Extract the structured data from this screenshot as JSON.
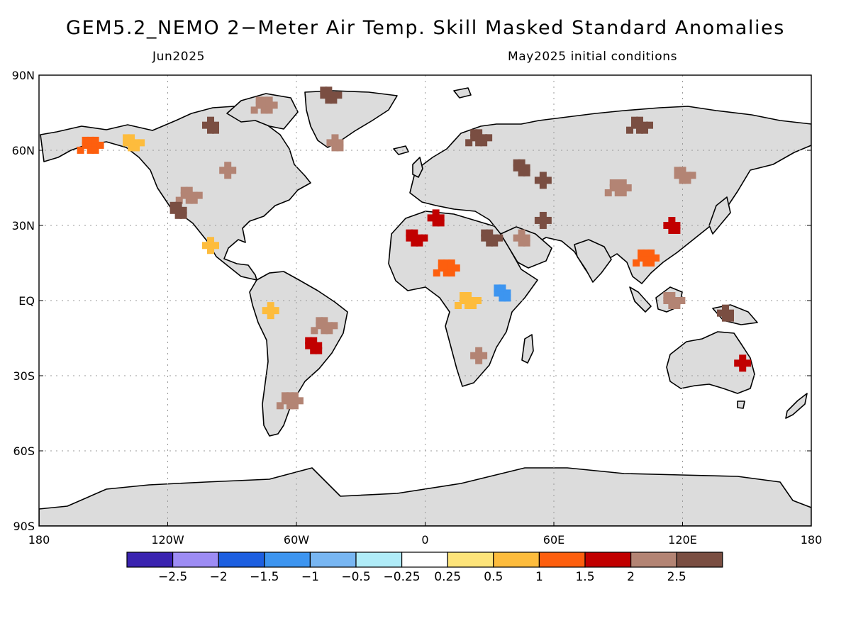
{
  "header": {
    "title": "GEM5.2_NEMO 2−Meter Air Temp. Skill Masked Standard Anomalies",
    "valid_month": "Jun2025",
    "init_note": "May2025 initial conditions"
  },
  "map": {
    "lat_ticks": [
      {
        "label": "90N",
        "lat": 90
      },
      {
        "label": "60N",
        "lat": 60
      },
      {
        "label": "30N",
        "lat": 30
      },
      {
        "label": "EQ",
        "lat": 0
      },
      {
        "label": "30S",
        "lat": -30
      },
      {
        "label": "60S",
        "lat": -60
      },
      {
        "label": "90S",
        "lat": -90
      }
    ],
    "lon_ticks": [
      {
        "label": "180",
        "lon": -180
      },
      {
        "label": "120W",
        "lon": -120
      },
      {
        "label": "60W",
        "lon": -60
      },
      {
        "label": "0",
        "lon": 0
      },
      {
        "label": "60E",
        "lon": 60
      },
      {
        "label": "120E",
        "lon": 120
      },
      {
        "label": "180",
        "lon": 180
      }
    ],
    "grid": true,
    "land_color": "#dcdcdc",
    "ocean_color": "#ffffff",
    "coast_color": "#000000"
  },
  "legend": {
    "bins": [
      {
        "color": "#3a23b0"
      },
      {
        "color": "#9d8cf4"
      },
      {
        "color": "#1d5fe0"
      },
      {
        "color": "#3d95f0"
      },
      {
        "color": "#78b6f2"
      },
      {
        "color": "#b0ecf8"
      },
      {
        "color": "#ffffff"
      },
      {
        "color": "#fde47a"
      },
      {
        "color": "#fdbc3d"
      },
      {
        "color": "#fd5f0e"
      },
      {
        "color": "#c10000"
      },
      {
        "color": "#b38474"
      },
      {
        "color": "#7a4e42"
      }
    ],
    "labels": [
      "−2.5",
      "−2",
      "−1.5",
      "−1",
      "−0.5",
      "−0.25",
      "0.25",
      "0.5",
      "1",
      "1.5",
      "2",
      "2.5"
    ]
  },
  "anomaly_regions": [
    {
      "name": "alaska-west",
      "lon": -156,
      "lat": 62,
      "level": 1
    },
    {
      "name": "yukon",
      "lon": -137,
      "lat": 63,
      "level": 0.5
    },
    {
      "name": "canadian-arctic",
      "lon": -100,
      "lat": 70,
      "level": 2.5
    },
    {
      "name": "baffin",
      "lon": -75,
      "lat": 78,
      "level": 2
    },
    {
      "name": "greenland-north",
      "lon": -45,
      "lat": 82,
      "level": 2.5
    },
    {
      "name": "greenland-south",
      "lon": -42,
      "lat": 63,
      "level": 2
    },
    {
      "name": "hudson-west",
      "lon": -92,
      "lat": 52,
      "level": 2
    },
    {
      "name": "western-us",
      "lon": -110,
      "lat": 42,
      "level": 2
    },
    {
      "name": "us-rockies",
      "lon": -115,
      "lat": 36,
      "level": 2.5
    },
    {
      "name": "mexico",
      "lon": -100,
      "lat": 22,
      "level": 0.5
    },
    {
      "name": "northeast-brazil",
      "lon": -47,
      "lat": -10,
      "level": 2
    },
    {
      "name": "central-brazil",
      "lon": -52,
      "lat": -18,
      "level": 1.5
    },
    {
      "name": "amazon-west",
      "lon": -72,
      "lat": -4,
      "level": 0.5
    },
    {
      "name": "argentina",
      "lon": -63,
      "lat": -40,
      "level": 2
    },
    {
      "name": "sahara-west",
      "lon": -5,
      "lat": 25,
      "level": 1.5
    },
    {
      "name": "north-africa",
      "lon": 5,
      "lat": 33,
      "level": 1.5
    },
    {
      "name": "sahel",
      "lon": 10,
      "lat": 13,
      "level": 1
    },
    {
      "name": "egypt",
      "lon": 30,
      "lat": 25,
      "level": 2.5
    },
    {
      "name": "arabia",
      "lon": 45,
      "lat": 25,
      "level": 2
    },
    {
      "name": "iran",
      "lon": 55,
      "lat": 32,
      "level": 2.5
    },
    {
      "name": "congo",
      "lon": 20,
      "lat": 0,
      "level": 0.5
    },
    {
      "name": "east-africa-cold",
      "lon": 36,
      "lat": 3,
      "level": -1.5
    },
    {
      "name": "southern-africa",
      "lon": 25,
      "lat": -22,
      "level": 2
    },
    {
      "name": "scandinavia",
      "lon": 25,
      "lat": 65,
      "level": 2.5
    },
    {
      "name": "russia-west",
      "lon": 45,
      "lat": 53,
      "level": 2.5
    },
    {
      "name": "kazakhstan",
      "lon": 55,
      "lat": 48,
      "level": 2.5
    },
    {
      "name": "central-asia",
      "lon": 90,
      "lat": 45,
      "level": 2
    },
    {
      "name": "mongolia",
      "lon": 120,
      "lat": 50,
      "level": 2
    },
    {
      "name": "east-china",
      "lon": 115,
      "lat": 30,
      "level": 1.5
    },
    {
      "name": "southeast-asia",
      "lon": 103,
      "lat": 17,
      "level": 1
    },
    {
      "name": "borneo",
      "lon": 115,
      "lat": 0,
      "level": 2
    },
    {
      "name": "new-guinea",
      "lon": 140,
      "lat": -5,
      "level": 2.5
    },
    {
      "name": "australia-east",
      "lon": 148,
      "lat": -25,
      "level": 1.5
    },
    {
      "name": "siberia-north",
      "lon": 100,
      "lat": 70,
      "level": 2.5
    }
  ]
}
